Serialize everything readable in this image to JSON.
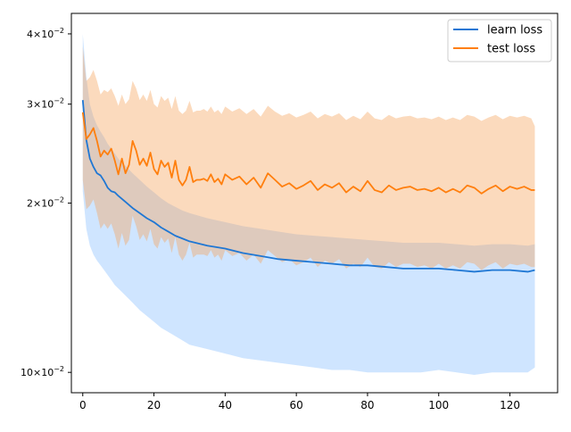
{
  "chart_data": {
    "type": "line",
    "title": "",
    "xlabel": "",
    "ylabel": "",
    "y_scale": "log",
    "xlim": [
      -3.2,
      133.4
    ],
    "ylim": [
      0.0092,
      0.0435
    ],
    "grid": false,
    "legend_position": "top-right",
    "x_ticks": [
      0,
      20,
      40,
      60,
      80,
      100,
      120
    ],
    "x_tick_labels": [
      "0",
      "20",
      "40",
      "60",
      "80",
      "100",
      "120"
    ],
    "y_ticks": [
      {
        "value": 0.04,
        "base": "4",
        "exp": "−2"
      },
      {
        "value": 0.03,
        "base": "3",
        "exp": "−2"
      },
      {
        "value": 0.02,
        "base": "2",
        "exp": "−2"
      },
      {
        "value": 0.01,
        "base": "10",
        "exp": "−2"
      }
    ],
    "series": [
      {
        "name": "learn loss",
        "color": "#1f77d4",
        "fill_color": "#cfe5ff",
        "x": [
          0,
          1,
          2,
          3,
          4,
          5,
          6,
          7,
          8,
          9,
          10,
          12,
          14,
          16,
          18,
          20,
          22,
          24,
          26,
          28,
          30,
          35,
          40,
          45,
          50,
          55,
          60,
          65,
          70,
          75,
          80,
          85,
          90,
          95,
          100,
          105,
          110,
          115,
          120,
          125,
          127
        ],
        "values": [
          0.0305,
          0.0259,
          0.024,
          0.0232,
          0.0226,
          0.0224,
          0.0219,
          0.0213,
          0.021,
          0.0209,
          0.0206,
          0.0201,
          0.0196,
          0.0192,
          0.0188,
          0.0185,
          0.0181,
          0.0178,
          0.0175,
          0.0173,
          0.0171,
          0.0168,
          0.0166,
          0.0163,
          0.0161,
          0.0159,
          0.0158,
          0.0157,
          0.0156,
          0.0155,
          0.0155,
          0.0154,
          0.0153,
          0.0153,
          0.0153,
          0.0152,
          0.0151,
          0.0152,
          0.0152,
          0.0151,
          0.0152
        ],
        "band_upper": [
          0.04,
          0.0335,
          0.03,
          0.0285,
          0.0275,
          0.0268,
          0.0262,
          0.0255,
          0.025,
          0.0245,
          0.024,
          0.0233,
          0.0226,
          0.022,
          0.0214,
          0.0209,
          0.0204,
          0.02,
          0.0197,
          0.0194,
          0.0192,
          0.0188,
          0.0185,
          0.0182,
          0.018,
          0.0178,
          0.0176,
          0.0175,
          0.0174,
          0.0173,
          0.0172,
          0.0171,
          0.017,
          0.017,
          0.017,
          0.0169,
          0.0168,
          0.0169,
          0.0169,
          0.0168,
          0.0169
        ],
        "band_lower": [
          0.021,
          0.018,
          0.0168,
          0.0162,
          0.0158,
          0.0155,
          0.0152,
          0.0149,
          0.0146,
          0.0143,
          0.0141,
          0.0137,
          0.0133,
          0.0129,
          0.0126,
          0.0123,
          0.012,
          0.0118,
          0.0116,
          0.0114,
          0.0112,
          0.011,
          0.0108,
          0.0106,
          0.0105,
          0.0104,
          0.0103,
          0.0102,
          0.0101,
          0.0101,
          0.01,
          0.01,
          0.01,
          0.01,
          0.0101,
          0.01,
          0.0099,
          0.01,
          0.01,
          0.01,
          0.0102
        ]
      },
      {
        "name": "test loss",
        "color": "#ff7f0e",
        "fill_color": "#f6a35a",
        "x": [
          0,
          1,
          2,
          3,
          4,
          5,
          6,
          7,
          8,
          9,
          10,
          11,
          12,
          13,
          14,
          15,
          16,
          17,
          18,
          19,
          20,
          21,
          22,
          23,
          24,
          25,
          26,
          27,
          28,
          29,
          30,
          31,
          32,
          33,
          34,
          35,
          36,
          37,
          38,
          39,
          40,
          42,
          44,
          46,
          48,
          50,
          52,
          54,
          56,
          58,
          60,
          62,
          64,
          66,
          68,
          70,
          72,
          74,
          76,
          78,
          80,
          82,
          84,
          86,
          88,
          90,
          92,
          94,
          96,
          98,
          100,
          102,
          104,
          106,
          108,
          110,
          112,
          114,
          116,
          118,
          120,
          122,
          124,
          126,
          127
        ],
        "values": [
          0.029,
          0.026,
          0.0265,
          0.0272,
          0.0258,
          0.0242,
          0.0248,
          0.0244,
          0.025,
          0.0238,
          0.0225,
          0.024,
          0.0226,
          0.0234,
          0.0258,
          0.0248,
          0.0234,
          0.024,
          0.0233,
          0.0246,
          0.023,
          0.0225,
          0.0238,
          0.0232,
          0.0236,
          0.0222,
          0.0238,
          0.022,
          0.0215,
          0.022,
          0.0232,
          0.0218,
          0.022,
          0.022,
          0.0221,
          0.0219,
          0.0225,
          0.0218,
          0.0221,
          0.0216,
          0.0225,
          0.022,
          0.0223,
          0.0216,
          0.0222,
          0.0213,
          0.0226,
          0.022,
          0.0214,
          0.0217,
          0.0212,
          0.0215,
          0.0219,
          0.0211,
          0.0216,
          0.0213,
          0.0217,
          0.0209,
          0.0214,
          0.021,
          0.0219,
          0.0211,
          0.0209,
          0.0215,
          0.0211,
          0.0213,
          0.0214,
          0.0211,
          0.0212,
          0.021,
          0.0213,
          0.0209,
          0.0212,
          0.0209,
          0.0215,
          0.0213,
          0.0208,
          0.0212,
          0.0215,
          0.021,
          0.0214,
          0.0212,
          0.0214,
          0.0211,
          0.0211
        ],
        "band_upper": [
          0.038,
          0.033,
          0.0335,
          0.0345,
          0.033,
          0.0312,
          0.0318,
          0.0315,
          0.032,
          0.031,
          0.0298,
          0.0312,
          0.03,
          0.0306,
          0.033,
          0.032,
          0.0305,
          0.0312,
          0.0304,
          0.0318,
          0.03,
          0.0296,
          0.031,
          0.0304,
          0.0308,
          0.0294,
          0.031,
          0.0292,
          0.0288,
          0.0292,
          0.0304,
          0.029,
          0.0292,
          0.0292,
          0.0294,
          0.0291,
          0.0297,
          0.029,
          0.0293,
          0.0288,
          0.0297,
          0.0291,
          0.0295,
          0.0288,
          0.0294,
          0.0285,
          0.0298,
          0.0291,
          0.0286,
          0.0289,
          0.0284,
          0.0287,
          0.0291,
          0.0283,
          0.0288,
          0.0285,
          0.0289,
          0.0281,
          0.0286,
          0.0282,
          0.0291,
          0.0283,
          0.0281,
          0.0287,
          0.0283,
          0.0285,
          0.0286,
          0.0283,
          0.0284,
          0.0282,
          0.0285,
          0.0281,
          0.0284,
          0.0281,
          0.0287,
          0.0285,
          0.028,
          0.0284,
          0.0287,
          0.0282,
          0.0286,
          0.0284,
          0.0286,
          0.0283,
          0.0274
        ],
        "band_lower": [
          0.022,
          0.0195,
          0.0198,
          0.0203,
          0.0192,
          0.018,
          0.0184,
          0.018,
          0.0184,
          0.0176,
          0.0166,
          0.0177,
          0.0168,
          0.0172,
          0.019,
          0.0182,
          0.0172,
          0.0176,
          0.0171,
          0.018,
          0.0169,
          0.0166,
          0.0174,
          0.017,
          0.0173,
          0.0163,
          0.0174,
          0.0162,
          0.0158,
          0.0162,
          0.017,
          0.016,
          0.0162,
          0.0162,
          0.0162,
          0.0161,
          0.0165,
          0.016,
          0.0162,
          0.0158,
          0.0165,
          0.0161,
          0.0163,
          0.0158,
          0.0162,
          0.0156,
          0.0165,
          0.0161,
          0.0157,
          0.0159,
          0.0155,
          0.0157,
          0.016,
          0.0154,
          0.0158,
          0.0156,
          0.0159,
          0.0153,
          0.0156,
          0.0154,
          0.016,
          0.0154,
          0.0153,
          0.0157,
          0.0154,
          0.0156,
          0.0156,
          0.0154,
          0.0155,
          0.0153,
          0.0156,
          0.0153,
          0.0155,
          0.0153,
          0.0157,
          0.0156,
          0.0152,
          0.0155,
          0.0157,
          0.0153,
          0.0156,
          0.0155,
          0.0156,
          0.0154,
          0.0154
        ]
      }
    ]
  }
}
